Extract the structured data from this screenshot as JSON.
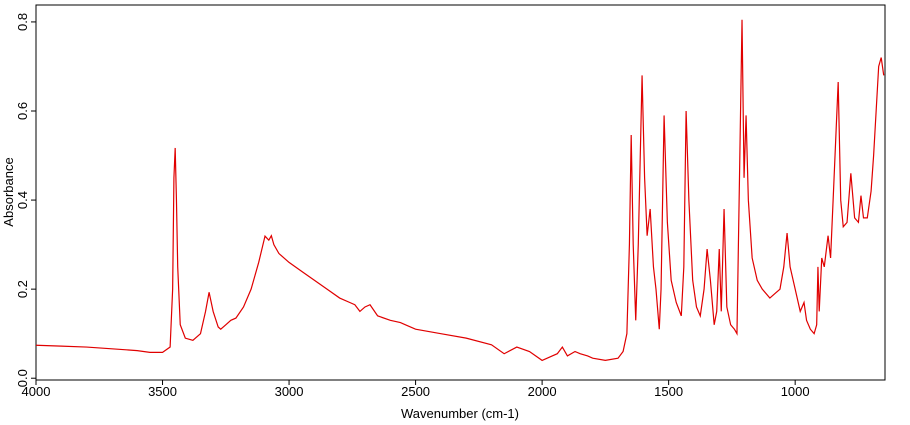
{
  "chart_data": {
    "type": "line",
    "x_label": "Wavenumber (cm-1)",
    "y_label": "Absorbance",
    "color": "#e00000",
    "xlim": [
      4000,
      645
    ],
    "ylim": [
      -0.004,
      0.838
    ],
    "xticks": [
      4000,
      3500,
      3000,
      2500,
      2000,
      1500,
      1000
    ],
    "yticks": [
      {
        "value": 0,
        "label": "0.0"
      },
      0.2,
      0.4,
      0.6,
      0.8
    ],
    "x": [
      4000,
      3900,
      3800,
      3700,
      3600,
      3550,
      3500,
      3470,
      3460,
      3455,
      3450,
      3445,
      3440,
      3430,
      3410,
      3380,
      3350,
      3330,
      3316,
      3300,
      3280,
      3270,
      3250,
      3230,
      3210,
      3180,
      3150,
      3120,
      3095,
      3080,
      3070,
      3060,
      3040,
      3000,
      2950,
      2900,
      2850,
      2800,
      2760,
      2740,
      2720,
      2700,
      2680,
      2650,
      2600,
      2560,
      2540,
      2500,
      2400,
      2300,
      2200,
      2150,
      2100,
      2050,
      2000,
      1960,
      1940,
      1920,
      1900,
      1870,
      1850,
      1820,
      1800,
      1750,
      1700,
      1680,
      1665,
      1655,
      1648,
      1640,
      1630,
      1620,
      1605,
      1595,
      1585,
      1573,
      1560,
      1550,
      1537,
      1530,
      1518,
      1505,
      1490,
      1470,
      1450,
      1440,
      1431,
      1420,
      1405,
      1390,
      1375,
      1360,
      1348,
      1335,
      1320,
      1310,
      1300,
      1292,
      1281,
      1270,
      1255,
      1240,
      1230,
      1220,
      1210,
      1202,
      1194,
      1185,
      1170,
      1150,
      1130,
      1100,
      1080,
      1060,
      1045,
      1032,
      1020,
      1000,
      980,
      965,
      955,
      940,
      925,
      915,
      910,
      905,
      895,
      885,
      870,
      860,
      850,
      830,
      820,
      810,
      795,
      780,
      765,
      750,
      740,
      730,
      715,
      700,
      690,
      680,
      670,
      660,
      650
    ],
    "values": [
      0.074,
      0.072,
      0.07,
      0.066,
      0.062,
      0.058,
      0.058,
      0.07,
      0.2,
      0.45,
      0.517,
      0.4,
      0.25,
      0.12,
      0.09,
      0.085,
      0.1,
      0.15,
      0.193,
      0.15,
      0.115,
      0.11,
      0.12,
      0.13,
      0.135,
      0.16,
      0.2,
      0.26,
      0.319,
      0.31,
      0.32,
      0.3,
      0.28,
      0.26,
      0.24,
      0.22,
      0.2,
      0.18,
      0.17,
      0.165,
      0.15,
      0.16,
      0.165,
      0.14,
      0.13,
      0.125,
      0.12,
      0.11,
      0.1,
      0.09,
      0.075,
      0.055,
      0.07,
      0.06,
      0.04,
      0.05,
      0.055,
      0.07,
      0.05,
      0.06,
      0.055,
      0.05,
      0.045,
      0.04,
      0.045,
      0.06,
      0.1,
      0.3,
      0.546,
      0.3,
      0.13,
      0.3,
      0.68,
      0.45,
      0.32,
      0.38,
      0.25,
      0.2,
      0.11,
      0.2,
      0.59,
      0.35,
      0.22,
      0.17,
      0.14,
      0.25,
      0.6,
      0.4,
      0.22,
      0.16,
      0.14,
      0.2,
      0.29,
      0.22,
      0.12,
      0.15,
      0.29,
      0.15,
      0.38,
      0.16,
      0.12,
      0.11,
      0.1,
      0.45,
      0.805,
      0.45,
      0.59,
      0.4,
      0.27,
      0.22,
      0.2,
      0.18,
      0.19,
      0.2,
      0.25,
      0.326,
      0.25,
      0.2,
      0.15,
      0.17,
      0.13,
      0.11,
      0.1,
      0.12,
      0.25,
      0.15,
      0.27,
      0.25,
      0.32,
      0.27,
      0.4,
      0.665,
      0.4,
      0.34,
      0.35,
      0.46,
      0.36,
      0.35,
      0.41,
      0.36,
      0.36,
      0.42,
      0.5,
      0.6,
      0.7,
      0.72,
      0.68
    ]
  }
}
